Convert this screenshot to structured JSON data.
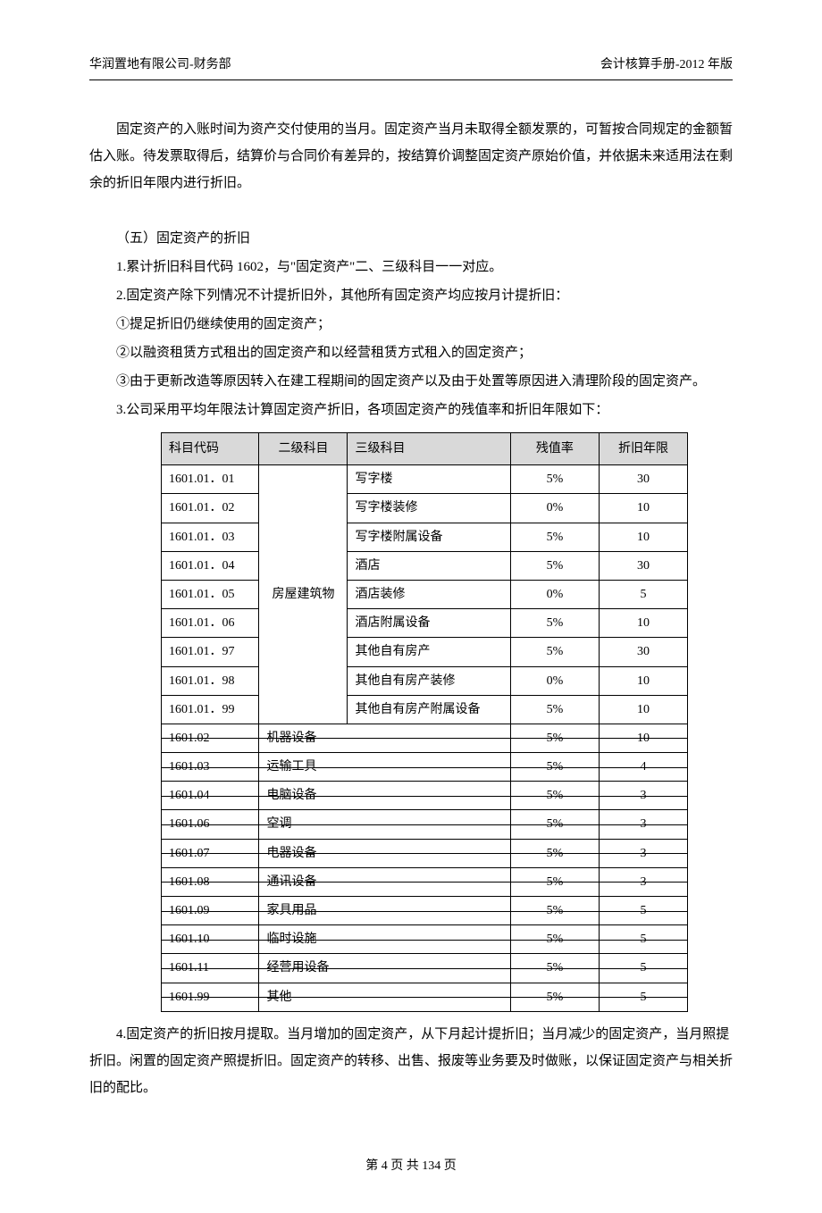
{
  "header": {
    "left": "华润置地有限公司-财务部",
    "right": "会计核算手册-2012 年版"
  },
  "paragraphs": {
    "p1": "固定资产的入账时间为资产交付使用的当月。固定资产当月未取得全额发票的，可暂按合同规定的金额暂估入账。待发票取得后，结算价与合同价有差异的，按结算价调整固定资产原始价值，并依据未来适用法在剩余的折旧年限内进行折旧。",
    "section_title": "（五）固定资产的折旧",
    "p2": "1.累计折旧科目代码 1602，与\"固定资产\"二、三级科目一一对应。",
    "p3": "2.固定资产除下列情况不计提折旧外，其他所有固定资产均应按月计提折旧：",
    "p4": "①提足折旧仍继续使用的固定资产；",
    "p5": "②以融资租赁方式租出的固定资产和以经营租赁方式租入的固定资产；",
    "p6": "③由于更新改造等原因转入在建工程期间的固定资产以及由于处置等原因进入清理阶段的固定资产。",
    "p7": "3.公司采用平均年限法计算固定资产折旧，各项固定资产的残值率和折旧年限如下：",
    "p8": "4.固定资产的折旧按月提取。当月增加的固定资产，从下月起计提折旧；当月减少的固定资产，当月照提折旧。闲置的固定资产照提折旧。固定资产的转移、出售、报废等业务要及时做账，以保证固定资产与相关折旧的配比。"
  },
  "table": {
    "headers": [
      "科目代码",
      "二级科目",
      "三级科目",
      "残值率",
      "折旧年限"
    ],
    "group1_label": "房屋建筑物",
    "rows_g1": [
      {
        "code": "1601.01．01",
        "l3": "写字楼",
        "rate": "5%",
        "year": "30"
      },
      {
        "code": "1601.01．02",
        "l3": "写字楼装修",
        "rate": "0%",
        "year": "10"
      },
      {
        "code": "1601.01．03",
        "l3": "写字楼附属设备",
        "rate": "5%",
        "year": "10"
      },
      {
        "code": "1601.01．04",
        "l3": "酒店",
        "rate": "5%",
        "year": "30"
      },
      {
        "code": "1601.01．05",
        "l3": "酒店装修",
        "rate": "0%",
        "year": "5"
      },
      {
        "code": "1601.01．06",
        "l3": "酒店附属设备",
        "rate": "5%",
        "year": "10"
      },
      {
        "code": "1601.01．97",
        "l3": "其他自有房产",
        "rate": "5%",
        "year": "30"
      },
      {
        "code": "1601.01．98",
        "l3": "其他自有房产装修",
        "rate": "0%",
        "year": "10"
      },
      {
        "code": "1601.01．99",
        "l3": "其他自有房产附属设备",
        "rate": "5%",
        "year": "10"
      }
    ],
    "rows_strike": [
      {
        "code": "1601.02",
        "l2": "机器设备",
        "rate": "5%",
        "year": "10"
      },
      {
        "code": "1601.03",
        "l2": "运输工具",
        "rate": "5%",
        "year": "4"
      },
      {
        "code": "1601.04",
        "l2": "电脑设备",
        "rate": "5%",
        "year": "3"
      },
      {
        "code": "1601.06",
        "l2": "空调",
        "rate": "5%",
        "year": "3"
      },
      {
        "code": "1601.07",
        "l2": "电器设备",
        "rate": "5%",
        "year": "3"
      },
      {
        "code": "1601.08",
        "l2": "通讯设备",
        "rate": "5%",
        "year": "3"
      },
      {
        "code": "1601.09",
        "l2": "家具用品",
        "rate": "5%",
        "year": "5"
      },
      {
        "code": "1601.10",
        "l2": "临时设施",
        "rate": "5%",
        "year": "5"
      },
      {
        "code": "1601.11",
        "l2": "经营用设备",
        "rate": "5%",
        "year": "5"
      },
      {
        "code": "1601.99",
        "l2": "其他",
        "rate": "5%",
        "year": "5"
      }
    ]
  },
  "footer": "第 4 页 共 134 页"
}
